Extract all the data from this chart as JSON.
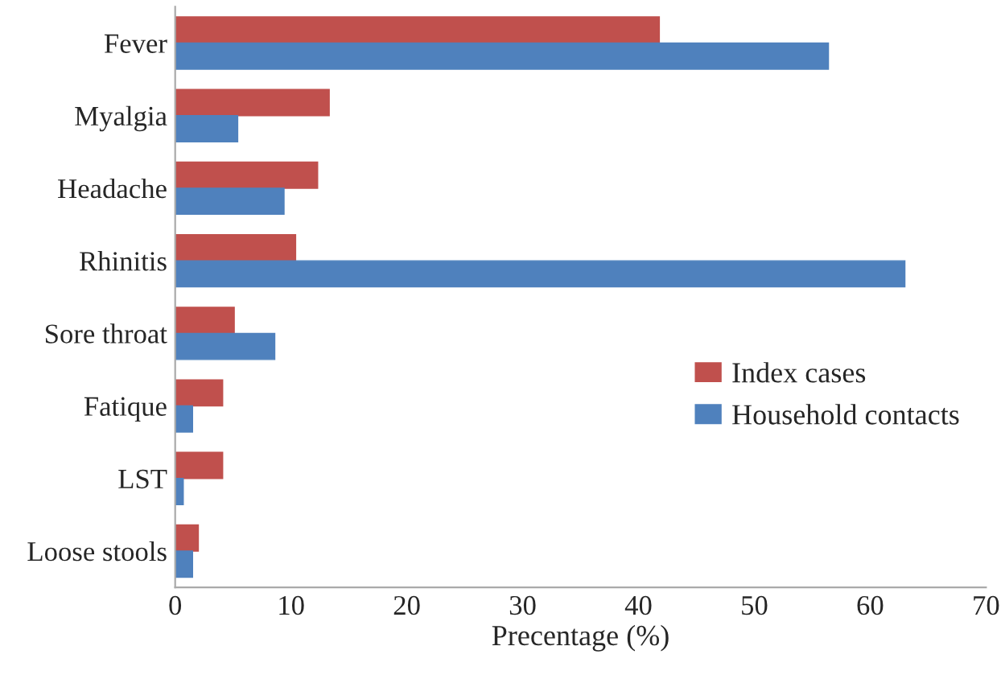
{
  "chart_data": {
    "type": "bar",
    "orientation": "horizontal",
    "categories": [
      "Fever",
      "Myalgia",
      "Headache",
      "Rhinitis",
      "Sore throat",
      "Fatique",
      "LST",
      "Loose stools"
    ],
    "series": [
      {
        "name": "Index cases",
        "color": "#c0504d",
        "values": [
          41.8,
          13.3,
          12.3,
          10.4,
          5.1,
          4.1,
          4.1,
          2.0
        ]
      },
      {
        "name": "Household contacts",
        "color": "#4f81bd",
        "values": [
          56.4,
          5.4,
          9.4,
          63.0,
          8.6,
          1.5,
          0.7,
          1.5
        ]
      }
    ],
    "xlabel": "Precentage (%)",
    "xlim": [
      0,
      70
    ],
    "xticks": [
      0,
      10,
      20,
      30,
      40,
      50,
      60,
      70
    ],
    "legend": "right",
    "grid": false
  }
}
